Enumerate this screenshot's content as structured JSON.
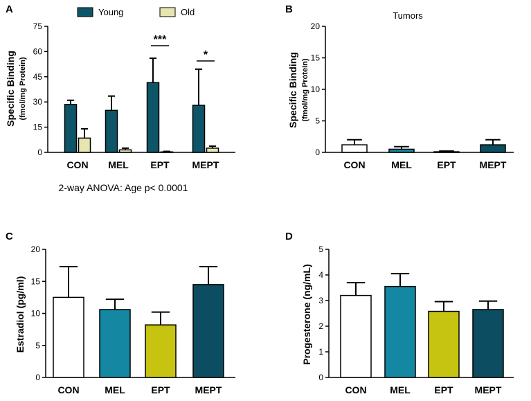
{
  "colors": {
    "young": "#0f5568",
    "old": "#e7e6b0",
    "white_bar": "#ffffff",
    "mel": "#1487a3",
    "ept": "#c7c411",
    "mept": "#0c4d62"
  },
  "chart_data": [
    {
      "panel": "A",
      "type": "bar",
      "title": "",
      "ylabel": "Specific Binding",
      "ylabel_sub": "(fmol/mg Protein)",
      "ylim": [
        0,
        75
      ],
      "yticks": [
        0,
        15,
        30,
        45,
        60,
        75
      ],
      "categories": [
        "CON",
        "MEL",
        "EPT",
        "MEPT"
      ],
      "legend": [
        "Young",
        "Old"
      ],
      "series": [
        {
          "name": "Young",
          "values": [
            28.5,
            25,
            41.5,
            28
          ],
          "errors": [
            2.5,
            8.5,
            14.5,
            21.5
          ]
        },
        {
          "name": "Old",
          "values": [
            8.5,
            1.5,
            0.3,
            2.5
          ],
          "errors": [
            5.5,
            1,
            0.3,
            1.2
          ]
        }
      ],
      "annotations": [
        {
          "category": "EPT",
          "label": "***"
        },
        {
          "category": "MEPT",
          "label": "*"
        }
      ],
      "note": "2-way ANOVA:  Age p< 0.0001"
    },
    {
      "panel": "B",
      "type": "bar",
      "title": "Tumors",
      "ylabel": "Specific Binding",
      "ylabel_sub": "(fmol/mg Protein)",
      "ylim": [
        0,
        20
      ],
      "yticks": [
        0,
        5,
        10,
        15,
        20
      ],
      "categories": [
        "CON",
        "MEL",
        "EPT",
        "MEPT"
      ],
      "values": [
        1.2,
        0.5,
        0.1,
        1.2
      ],
      "errors": [
        0.8,
        0.4,
        0.1,
        0.8
      ]
    },
    {
      "panel": "C",
      "type": "bar",
      "title": "",
      "ylabel": "Estradiol (pg/ml)",
      "ylim": [
        0,
        20
      ],
      "yticks": [
        0,
        5,
        10,
        15,
        20
      ],
      "categories": [
        "CON",
        "MEL",
        "EPT",
        "MEPT"
      ],
      "values": [
        12.5,
        10.6,
        8.2,
        14.5
      ],
      "errors": [
        4.8,
        1.6,
        2.0,
        2.8
      ]
    },
    {
      "panel": "D",
      "type": "bar",
      "title": "",
      "ylabel": "Progesterone  (ng/mL)",
      "ylim": [
        0,
        5
      ],
      "yticks": [
        0,
        1,
        2,
        3,
        4,
        5
      ],
      "categories": [
        "CON",
        "MEL",
        "EPT",
        "MEPT"
      ],
      "values": [
        3.2,
        3.55,
        2.58,
        2.65
      ],
      "errors": [
        0.5,
        0.5,
        0.38,
        0.33
      ]
    }
  ]
}
